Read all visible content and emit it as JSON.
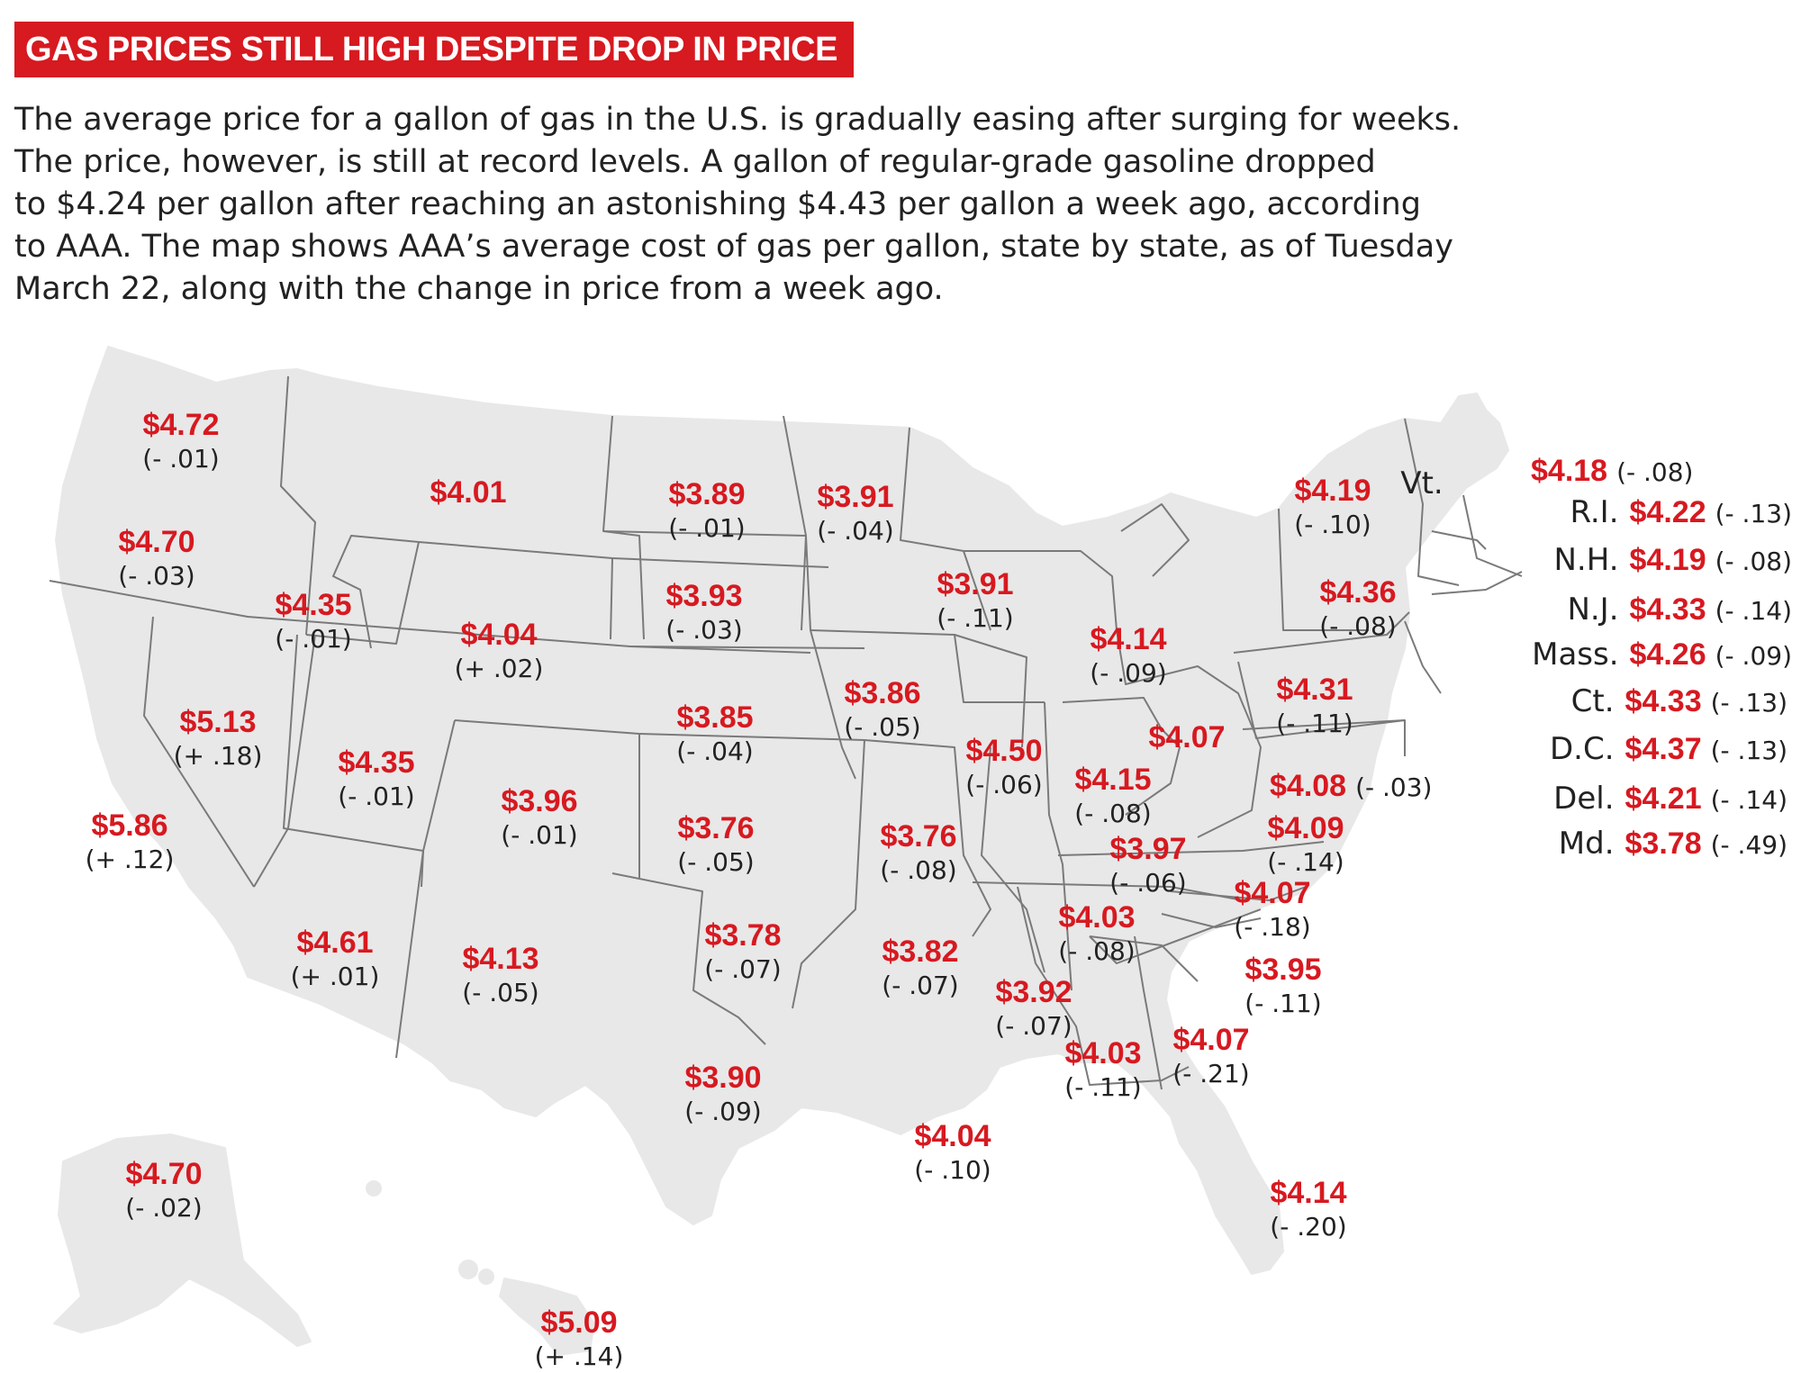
{
  "headline": "GAS PRICES STILL HIGH DESPITE DROP IN PRICE",
  "intro": "The average price for a gallon of gas in the U.S. is gradually easing after surging for weeks.\nThe price, however, is still at record levels. A gallon of regular-grade gasoline dropped\nto $4.24 per gallon after reaching an astonishing $4.43 per gallon a week ago, according\nto AAA. The map shows AAA’s average cost of gas per gallon, state by state, as of Tuesday\nMarch 22, along with the change in price from a week ago.",
  "colors": {
    "accent": "#d71920",
    "land": "#e8e8e8",
    "border": "#7a7a7a",
    "text": "#222222"
  },
  "states": {
    "WA": {
      "price": "$4.72",
      "change": "(- .01)"
    },
    "OR": {
      "price": "$4.70",
      "change": "(- .03)"
    },
    "CA": {
      "price": "$5.86",
      "change": "(+ .12)"
    },
    "NV": {
      "price": "$5.13",
      "change": "(+ .18)"
    },
    "ID": {
      "price": "$4.35",
      "change": "(- .01)"
    },
    "MT": {
      "price": "$4.01",
      "change": ""
    },
    "WY": {
      "price": "$4.04",
      "change": "(+ .02)"
    },
    "UT": {
      "price": "$4.35",
      "change": "(- .01)"
    },
    "AZ": {
      "price": "$4.61",
      "change": "(+ .01)"
    },
    "CO": {
      "price": "$3.96",
      "change": "(- .01)"
    },
    "NM": {
      "price": "$4.13",
      "change": "(- .05)"
    },
    "ND": {
      "price": "$3.89",
      "change": "(- .01)"
    },
    "SD": {
      "price": "$3.93",
      "change": "(- .03)"
    },
    "NE": {
      "price": "$3.85",
      "change": "(- .04)"
    },
    "KS": {
      "price": "$3.76",
      "change": "(- .05)"
    },
    "OK": {
      "price": "$3.78",
      "change": "(- .07)"
    },
    "TX": {
      "price": "$3.90",
      "change": "(- .09)"
    },
    "MN": {
      "price": "$3.91",
      "change": "(- .04)"
    },
    "IA": {
      "price": "$3.86",
      "change": "(- .05)"
    },
    "MO": {
      "price": "$3.76",
      "change": "(- .08)"
    },
    "AR": {
      "price": "$3.82",
      "change": "(- .07)"
    },
    "LA": {
      "price": "$4.04",
      "change": "(- .10)"
    },
    "WI": {
      "price": "$3.91",
      "change": "(- .11)"
    },
    "IL": {
      "price": "$4.50",
      "change": "(- .06)"
    },
    "MI": {
      "price": "$4.14",
      "change": "(- .09)"
    },
    "IN": {
      "price": "$4.15",
      "change": "(- .08)"
    },
    "OH": {
      "price": "$4.07",
      "change": ""
    },
    "KY": {
      "price": "$3.97",
      "change": "(- .06)"
    },
    "TN": {
      "price": "$4.03",
      "change": "(- .08)"
    },
    "MS": {
      "price": "$3.92",
      "change": "(- .07)"
    },
    "AL": {
      "price": "$4.03",
      "change": "(- .11)"
    },
    "GA": {
      "price": "$4.07",
      "change": "(- .21)"
    },
    "FL": {
      "price": "$4.14",
      "change": "(- .20)"
    },
    "SC": {
      "price": "$3.95",
      "change": "(- .11)"
    },
    "NC": {
      "price": "$4.07",
      "change": "(- .18)"
    },
    "VA": {
      "price": "$4.09",
      "change": "(- .14)"
    },
    "WV": {
      "price": "$4.08",
      "change": "(- .03)"
    },
    "PA": {
      "price": "$4.31",
      "change": "(- .11)"
    },
    "NY": {
      "price": "$4.36",
      "change": "(- .08)"
    },
    "VT": {
      "name": "Vt.",
      "price": "$4.19",
      "change": "(- .10)"
    },
    "ME": {
      "price": "$4.18",
      "change": "(- .08)"
    },
    "AK": {
      "price": "$4.70",
      "change": "(- .02)"
    },
    "HI": {
      "price": "$5.09",
      "change": "(+ .14)"
    }
  },
  "northeast_list": [
    {
      "name": "R.I.",
      "price": "$4.22",
      "change": "(- .13)"
    },
    {
      "name": "N.H.",
      "price": "$4.19",
      "change": "(- .08)"
    },
    {
      "name": "N.J.",
      "price": "$4.33",
      "change": "(- .14)"
    },
    {
      "name": "Mass.",
      "price": "$4.26",
      "change": "(- .09)"
    },
    {
      "name": "Ct.",
      "price": "$4.33",
      "change": "(- .13)"
    },
    {
      "name": "D.C.",
      "price": "$4.37",
      "change": "(- .13)"
    },
    {
      "name": "Del.",
      "price": "$4.21",
      "change": "(- .14)"
    },
    {
      "name": "Md.",
      "price": "$3.78",
      "change": "(- .49)"
    }
  ]
}
